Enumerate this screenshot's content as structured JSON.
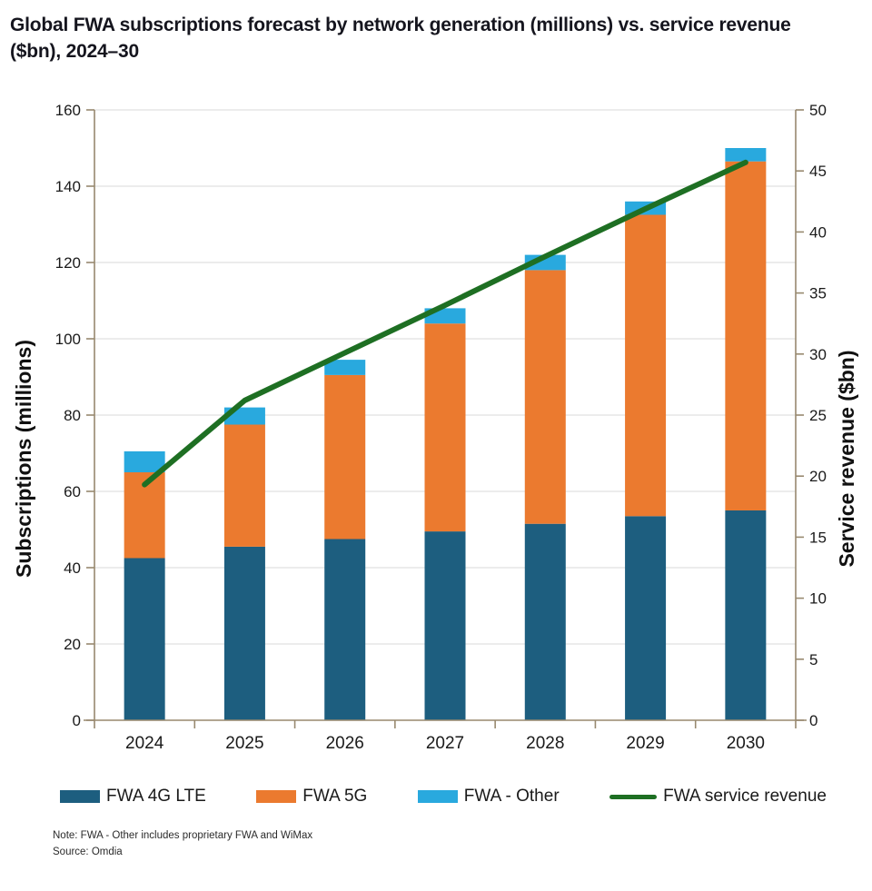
{
  "title": "Global FWA subscriptions forecast by network generation (millions) vs. service revenue ($bn), 2024–30",
  "notes": {
    "note": "Note: FWA - Other includes proprietary FWA and WiMax",
    "source": "Source: Omdia"
  },
  "chart_data": {
    "type": "combo-stacked-bar-line",
    "categories": [
      "2024",
      "2025",
      "2026",
      "2027",
      "2028",
      "2029",
      "2030"
    ],
    "series": [
      {
        "name": "FWA 4G LTE",
        "type": "bar",
        "stacked": true,
        "axis": "left",
        "color": "#1D5E7F",
        "values": [
          42.5,
          45.5,
          47.5,
          49.5,
          51.5,
          53.5,
          55
        ]
      },
      {
        "name": "FWA 5G",
        "type": "bar",
        "stacked": true,
        "axis": "left",
        "color": "#EB7A2F",
        "values": [
          22.5,
          32,
          43,
          54.5,
          66.5,
          79,
          91.5
        ]
      },
      {
        "name": "FWA - Other",
        "type": "bar",
        "stacked": true,
        "axis": "left",
        "color": "#29A9DE",
        "values": [
          5.5,
          4.5,
          4,
          4,
          4,
          3.5,
          3.5
        ]
      },
      {
        "name": "FWA service revenue",
        "type": "line",
        "axis": "right",
        "color": "#1E6F23",
        "values": [
          19.3,
          26.2,
          30.1,
          34.0,
          38.0,
          41.9,
          45.7
        ]
      }
    ],
    "stack_totals": [
      70.5,
      82,
      94.5,
      108,
      122,
      136,
      150
    ],
    "left_axis": {
      "label": "Subscriptions (millions)",
      "min": 0,
      "max": 160,
      "step": 20
    },
    "right_axis": {
      "label": "Service revenue ($bn)",
      "min": 0,
      "max": 50,
      "step": 5
    },
    "grid": "horizontal",
    "legend_position": "bottom",
    "style": {
      "grid_color": "#ECECEC",
      "axis_color": "#98896F",
      "text_color": "#1A1A1A"
    }
  }
}
